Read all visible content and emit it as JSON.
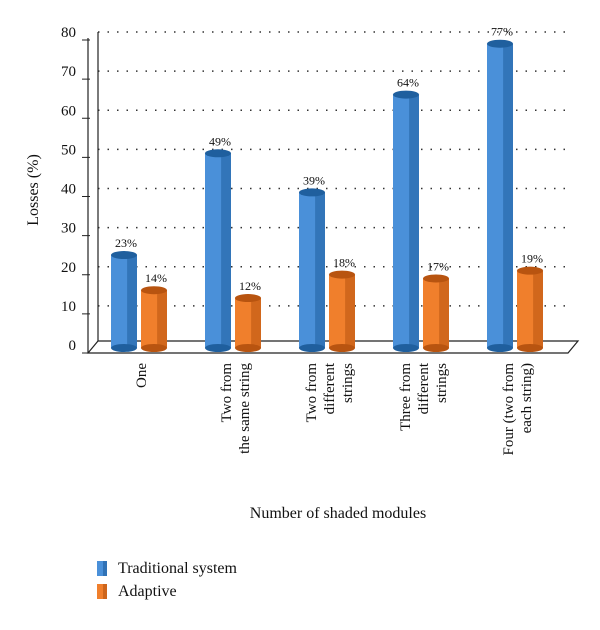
{
  "chart_data": {
    "type": "bar",
    "ylabel": "Losses (%)",
    "xlabel": "Number of shaded modules",
    "ylim": [
      0,
      80
    ],
    "yticks": [
      0,
      10,
      20,
      30,
      40,
      50,
      60,
      70,
      80
    ],
    "grid": true,
    "legend_position": "bottom-left",
    "categories": [
      [
        "One"
      ],
      [
        "Two from",
        "the same string"
      ],
      [
        "Two from",
        "different",
        "strings"
      ],
      [
        "Three from",
        "different",
        "strings"
      ],
      [
        "Four (two from",
        "each string)"
      ]
    ],
    "series": [
      {
        "name": "Traditional system",
        "values": [
          23,
          49,
          39,
          64,
          77
        ],
        "labels": [
          "23%",
          "49%",
          "39%",
          "64%",
          "77%"
        ],
        "color": "#4a90d9",
        "color_dark": "#1f5f9e"
      },
      {
        "name": "Adaptive",
        "values": [
          14,
          12,
          18,
          17,
          19
        ],
        "labels": [
          "14%",
          "12%",
          "18%",
          "17%",
          "19%"
        ],
        "color": "#f07f2c",
        "color_dark": "#b85410"
      }
    ]
  }
}
